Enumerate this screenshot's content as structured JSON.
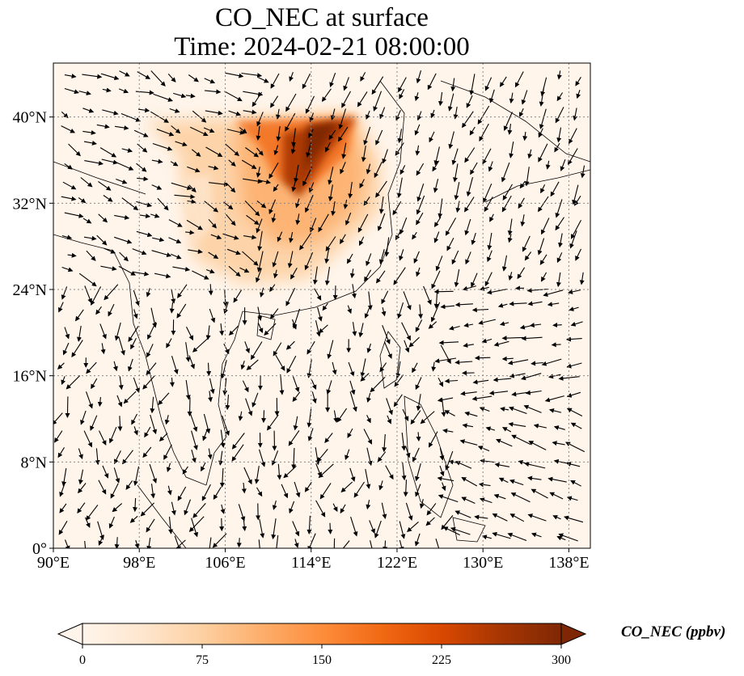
{
  "title": {
    "line1": "CO_NEC at surface",
    "line2": "Time: 2024-02-21 08:00:00"
  },
  "map": {
    "lon_range": [
      90,
      140
    ],
    "lat_range": [
      0,
      45
    ],
    "lon_ticks": [
      {
        "value": 90,
        "label": "90°E"
      },
      {
        "value": 98,
        "label": "98°E"
      },
      {
        "value": 106,
        "label": "106°E"
      },
      {
        "value": 114,
        "label": "114°E"
      },
      {
        "value": 122,
        "label": "122°E"
      },
      {
        "value": 130,
        "label": "130°E"
      },
      {
        "value": 138,
        "label": "138°E"
      }
    ],
    "lat_ticks": [
      {
        "value": 0,
        "label": "0°"
      },
      {
        "value": 8,
        "label": "8°N"
      },
      {
        "value": 16,
        "label": "16°N"
      },
      {
        "value": 24,
        "label": "24°N"
      },
      {
        "value": 32,
        "label": "32°N"
      },
      {
        "value": 40,
        "label": "40°N"
      }
    ],
    "gridlines": true,
    "background_color": "#fff5eb"
  },
  "colorbar": {
    "min": 0,
    "max": 300,
    "ticks": [
      "0",
      "75",
      "150",
      "225",
      "300"
    ],
    "tick_values": [
      0,
      75,
      150,
      225,
      300
    ],
    "label": "CO_NEC (ppbv)",
    "cmap": [
      "#fff5eb",
      "#fee6ce",
      "#fdd0a2",
      "#fdae6b",
      "#fd8d3c",
      "#f16913",
      "#d94801",
      "#a63603",
      "#7f2704"
    ],
    "extend": "both"
  }
}
